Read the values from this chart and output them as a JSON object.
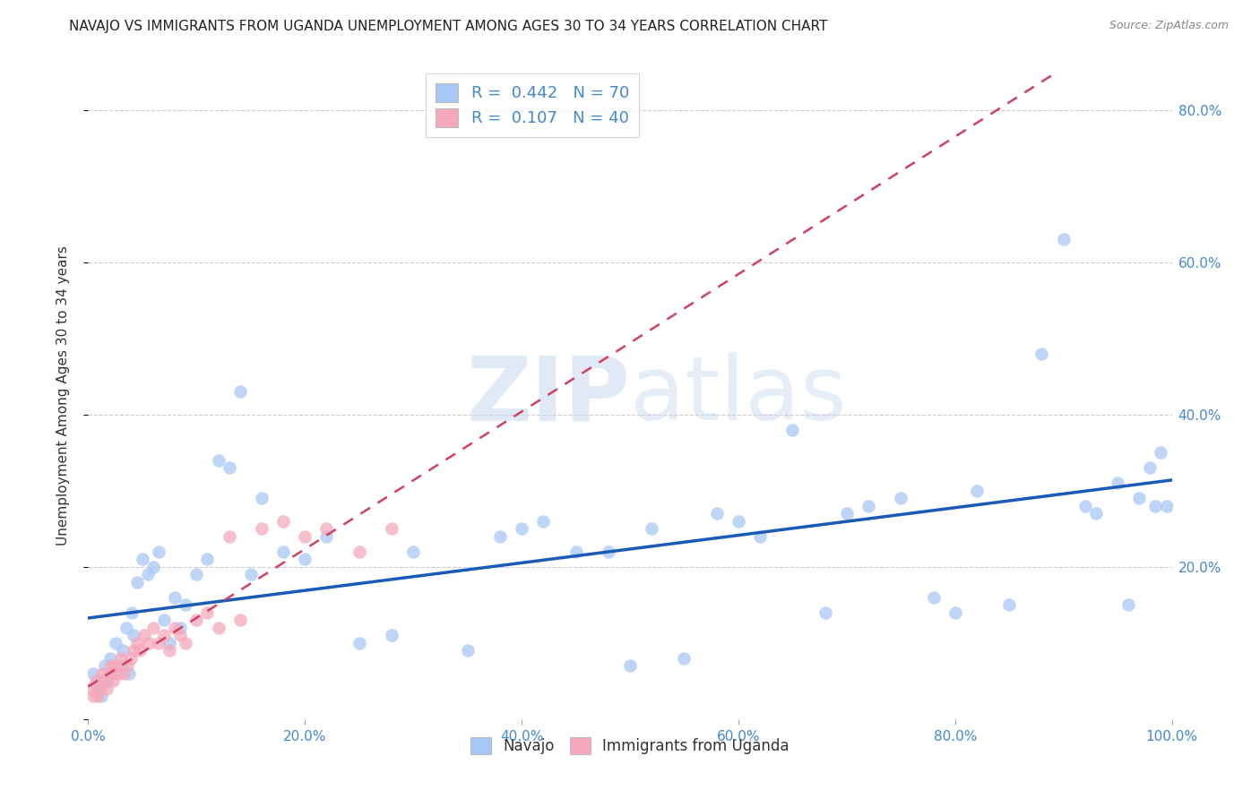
{
  "title": "NAVAJO VS IMMIGRANTS FROM UGANDA UNEMPLOYMENT AMONG AGES 30 TO 34 YEARS CORRELATION CHART",
  "source": "Source: ZipAtlas.com",
  "ylabel": "Unemployment Among Ages 30 to 34 years",
  "xlim": [
    0.0,
    1.0
  ],
  "ylim": [
    0.0,
    0.85
  ],
  "navajo_R": 0.442,
  "navajo_N": 70,
  "uganda_R": 0.107,
  "uganda_N": 40,
  "navajo_color": "#a8c8f5",
  "uganda_color": "#f5a8bb",
  "navajo_line_color": "#1a5ab8",
  "uganda_line_color": "#d04060",
  "watermark_zip": "ZIP",
  "watermark_atlas": "atlas",
  "navajo_x": [
    0.005,
    0.008,
    0.01,
    0.012,
    0.015,
    0.018,
    0.02,
    0.022,
    0.025,
    0.03,
    0.032,
    0.035,
    0.038,
    0.04,
    0.042,
    0.045,
    0.05,
    0.055,
    0.06,
    0.065,
    0.07,
    0.075,
    0.08,
    0.085,
    0.09,
    0.1,
    0.11,
    0.12,
    0.13,
    0.14,
    0.15,
    0.16,
    0.18,
    0.2,
    0.22,
    0.25,
    0.28,
    0.3,
    0.35,
    0.38,
    0.4,
    0.42,
    0.45,
    0.48,
    0.5,
    0.52,
    0.55,
    0.58,
    0.6,
    0.62,
    0.65,
    0.68,
    0.7,
    0.72,
    0.75,
    0.78,
    0.8,
    0.82,
    0.85,
    0.88,
    0.9,
    0.92,
    0.93,
    0.95,
    0.96,
    0.97,
    0.98,
    0.985,
    0.99,
    0.995
  ],
  "navajo_y": [
    0.06,
    0.04,
    0.05,
    0.03,
    0.07,
    0.05,
    0.08,
    0.06,
    0.1,
    0.07,
    0.09,
    0.12,
    0.06,
    0.14,
    0.11,
    0.18,
    0.21,
    0.19,
    0.2,
    0.22,
    0.13,
    0.1,
    0.16,
    0.12,
    0.15,
    0.19,
    0.21,
    0.34,
    0.33,
    0.43,
    0.19,
    0.29,
    0.22,
    0.21,
    0.24,
    0.1,
    0.11,
    0.22,
    0.09,
    0.24,
    0.25,
    0.26,
    0.22,
    0.22,
    0.07,
    0.25,
    0.08,
    0.27,
    0.26,
    0.24,
    0.38,
    0.14,
    0.27,
    0.28,
    0.29,
    0.16,
    0.14,
    0.3,
    0.15,
    0.48,
    0.63,
    0.28,
    0.27,
    0.31,
    0.15,
    0.29,
    0.33,
    0.28,
    0.35,
    0.28
  ],
  "uganda_x": [
    0.003,
    0.005,
    0.007,
    0.009,
    0.011,
    0.013,
    0.015,
    0.017,
    0.019,
    0.021,
    0.023,
    0.025,
    0.027,
    0.03,
    0.033,
    0.036,
    0.039,
    0.042,
    0.045,
    0.048,
    0.052,
    0.056,
    0.06,
    0.065,
    0.07,
    0.075,
    0.08,
    0.085,
    0.09,
    0.1,
    0.11,
    0.12,
    0.13,
    0.14,
    0.16,
    0.18,
    0.2,
    0.22,
    0.25,
    0.28
  ],
  "uganda_y": [
    0.04,
    0.03,
    0.05,
    0.03,
    0.04,
    0.06,
    0.05,
    0.04,
    0.06,
    0.07,
    0.05,
    0.07,
    0.06,
    0.08,
    0.06,
    0.07,
    0.08,
    0.09,
    0.1,
    0.09,
    0.11,
    0.1,
    0.12,
    0.1,
    0.11,
    0.09,
    0.12,
    0.11,
    0.1,
    0.13,
    0.14,
    0.12,
    0.24,
    0.13,
    0.25,
    0.26,
    0.24,
    0.25,
    0.22,
    0.25
  ],
  "xticks": [
    0.0,
    0.2,
    0.4,
    0.6,
    0.8,
    1.0
  ],
  "xtick_labels": [
    "0.0%",
    "20.0%",
    "40.0%",
    "60.0%",
    "80.0%",
    "100.0%"
  ],
  "yticks": [
    0.0,
    0.2,
    0.4,
    0.6,
    0.8
  ],
  "ytick_labels": [
    "",
    "20.0%",
    "40.0%",
    "60.0%",
    "80.0%"
  ],
  "grid_color": "#cccccc",
  "bg_color": "#ffffff",
  "axis_color": "#4488cc",
  "title_fontsize": 11,
  "tick_fontsize": 11,
  "legend_label_navajo": "Navajo",
  "legend_label_uganda": "Immigrants from Uganda"
}
